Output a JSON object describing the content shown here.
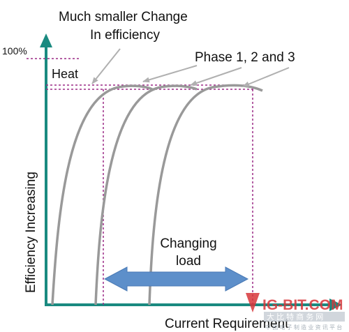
{
  "annotations": {
    "top_note_line1": "Much smaller Change",
    "top_note_line2": "In efficiency",
    "phase_label": "Phase 1, 2 and 3",
    "heat_label": "Heat",
    "y_tick_100": "100%",
    "changing_load_line1": "Changing",
    "changing_load_line2": "load"
  },
  "axes": {
    "y_label": "Efficiency Increasing",
    "x_label": "Current Requirement"
  },
  "watermark": {
    "brand": "IG-BIT.COM",
    "tagline": "大 比 特 商 务 网",
    "sub": "中 国 电 子 制 造 业 资 讯 平 台"
  },
  "colors": {
    "axis": "#1a8a80",
    "curve": "#999999",
    "guide": "#9b2a86",
    "arrow": "#5d8fca",
    "pointer": "#b0b0b0",
    "watermark_red": "#d8373a"
  },
  "icons": {
    "axis_arrow": "triangle-arrowhead",
    "load_arrow": "double-headed-arrow",
    "pointer_arrow": "thin-arrow"
  }
}
